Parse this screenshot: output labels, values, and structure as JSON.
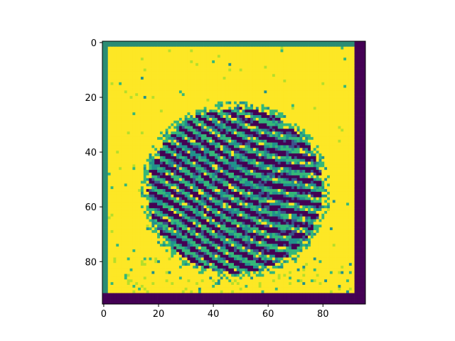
{
  "chart_data": {
    "type": "heatmap",
    "title": "",
    "xlabel": "",
    "ylabel": "",
    "colormap": "viridis",
    "image_shape": [
      96,
      96
    ],
    "xlim": [
      -0.5,
      95.5
    ],
    "ylim": [
      95.5,
      -0.5
    ],
    "x_ticks": [
      0,
      20,
      40,
      60,
      80
    ],
    "y_ticks": [
      0,
      20,
      40,
      60,
      80
    ],
    "x_tick_labels": [
      "0",
      "20",
      "40",
      "60",
      "80"
    ],
    "y_tick_labels": [
      "0",
      "20",
      "40",
      "60",
      "80"
    ],
    "grid": false,
    "description_of_content": "",
    "regions": {
      "background_value": "yellow (max)",
      "left_border_cols": [
        0,
        1
      ],
      "top_border_rows": [
        0,
        1
      ],
      "right_dark_cols": [
        92,
        95
      ],
      "bottom_dark_rows": [
        92,
        95
      ],
      "pattern_center": [
        54,
        48
      ],
      "pattern_radii": [
        33,
        31
      ]
    },
    "colors": {
      "yellow": "#fde725",
      "teal": "#35b779",
      "bluegreen": "#21918c",
      "blue": "#3b528b",
      "purple": "#440154",
      "border_green": "#2a8c74"
    }
  }
}
